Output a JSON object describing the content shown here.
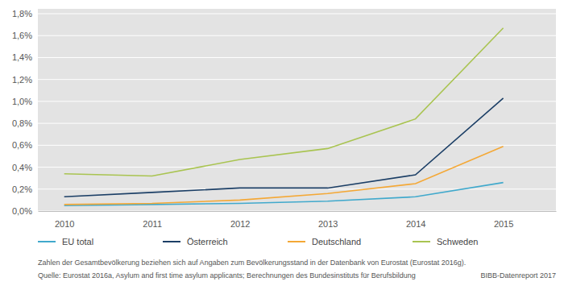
{
  "chart_data": {
    "type": "line",
    "x": [
      2010,
      2011,
      2012,
      2013,
      2014,
      2015
    ],
    "xlim": [
      2009.7,
      2015.6
    ],
    "xticks": [
      2010,
      2011,
      2012,
      2013,
      2014,
      2015
    ],
    "ylim": [
      0,
      1.8
    ],
    "yticks": [
      {
        "value": 0,
        "label": "0,0%"
      },
      {
        "value": 0.2,
        "label": "0,2%"
      },
      {
        "value": 0.4,
        "label": "0,4%"
      },
      {
        "value": 0.6,
        "label": "0,6%"
      },
      {
        "value": 0.8,
        "label": "0,8%"
      },
      {
        "value": 1.0,
        "label": "1,0%"
      },
      {
        "value": 1.2,
        "label": "1,2%"
      },
      {
        "value": 1.4,
        "label": "1,4%"
      },
      {
        "value": 1.6,
        "label": "1,6%"
      },
      {
        "value": 1.8,
        "label": "1,8%"
      }
    ],
    "grid": true,
    "legend": "bottom",
    "series": [
      {
        "name": "EU total",
        "color": "#41a9cc",
        "values": [
          0.05,
          0.06,
          0.07,
          0.09,
          0.13,
          0.26
        ]
      },
      {
        "name": "Österreich",
        "color": "#1c3f66",
        "values": [
          0.13,
          0.17,
          0.21,
          0.21,
          0.33,
          1.03
        ]
      },
      {
        "name": "Deutschland",
        "color": "#f4a836",
        "values": [
          0.06,
          0.07,
          0.1,
          0.16,
          0.25,
          0.59
        ]
      },
      {
        "name": "Schweden",
        "color": "#a9c451",
        "values": [
          0.34,
          0.32,
          0.47,
          0.57,
          0.84,
          1.67
        ]
      }
    ],
    "annotations": [
      "Zahlen der Gesamtbevölkerung beziehen sich auf Angaben zum Bevölkerungsstand in der Datenbank von Eurostat (Eurostat 2016g).",
      "Quelle: Eurostat 2016a, Asylum and first time asylum applicants; Berechnungen des Bundesinstituts für Berufsbildung",
      "BIBB-Datenreport 2017"
    ]
  }
}
